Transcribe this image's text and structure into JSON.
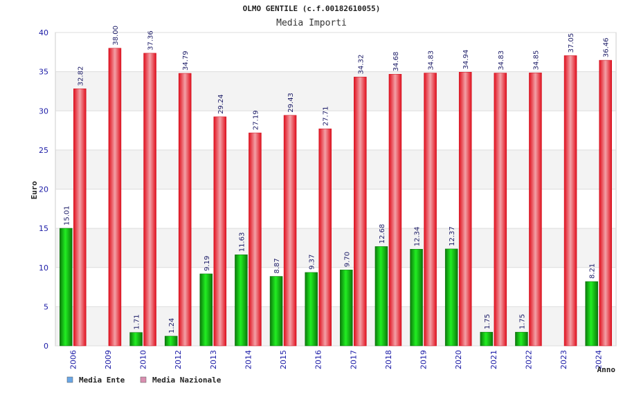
{
  "chart_data": {
    "type": "bar",
    "title": "OLMO GENTILE (c.f.00182610055)",
    "subtitle": "Media Importi",
    "xlabel": "Anno",
    "ylabel": "Euro",
    "ylim": [
      0,
      40
    ],
    "yticks": [
      0,
      5,
      10,
      15,
      20,
      25,
      30,
      35,
      40
    ],
    "categories": [
      "2006",
      "2009",
      "2010",
      "2012",
      "2013",
      "2014",
      "2015",
      "2016",
      "2017",
      "2018",
      "2019",
      "2020",
      "2021",
      "2022",
      "2023",
      "2024"
    ],
    "series": [
      {
        "name": "Media Ente",
        "color": "#11bb11",
        "legend_color": "#6aa7e6",
        "values": [
          15.01,
          null,
          1.71,
          1.24,
          9.19,
          11.63,
          8.87,
          9.37,
          9.7,
          12.68,
          12.34,
          12.37,
          1.75,
          1.75,
          null,
          8.21
        ],
        "labels": [
          "15.01",
          "",
          "1.71",
          "1.24",
          "9.19",
          "11.63",
          "8.87",
          "9.37",
          "9.70",
          "12.68",
          "12.34",
          "12.37",
          "1.75",
          "1.75",
          "",
          "8.21"
        ]
      },
      {
        "name": "Media Nazionale",
        "color": "#ee1122",
        "legend_color": "#d98fb0",
        "values": [
          32.82,
          38.0,
          37.36,
          34.79,
          29.24,
          27.19,
          29.43,
          27.71,
          34.32,
          34.68,
          34.83,
          34.94,
          34.83,
          34.85,
          37.05,
          36.46
        ],
        "labels": [
          "32.82",
          "38.00",
          "37.36",
          "34.79",
          "29.24",
          "27.19",
          "29.43",
          "27.71",
          "34.32",
          "34.68",
          "34.83",
          "34.94",
          "34.83",
          "34.85",
          "37.05",
          "36.46"
        ]
      }
    ],
    "grid": true,
    "legend_position": "bottom-left"
  }
}
